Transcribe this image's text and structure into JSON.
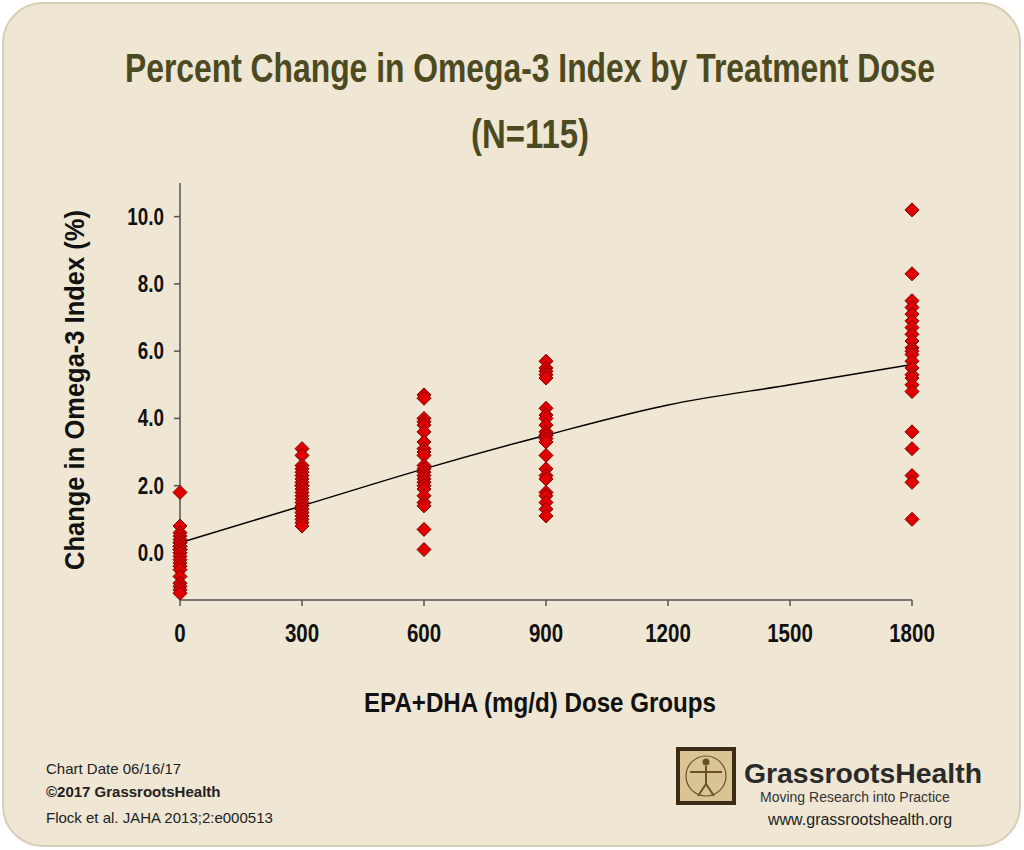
{
  "chart_data": {
    "type": "scatter",
    "title": "Percent Change in Omega-3 Index by Treatment Dose",
    "subtitle": "(N=115)",
    "xlabel": "EPA+DHA (mg/d) Dose Groups",
    "ylabel": "Change in Omega-3 Index (%)",
    "xlim": [
      0,
      1800
    ],
    "xticks": [
      0,
      300,
      600,
      900,
      1200,
      1500,
      1800
    ],
    "ylim": [
      -1.4,
      11
    ],
    "yticks": [
      {
        "value": 0,
        "label": "0.0"
      },
      {
        "value": 2,
        "label": "2.0"
      },
      {
        "value": 4,
        "label": "4.0"
      },
      {
        "value": 6,
        "label": "6.0"
      },
      {
        "value": 8,
        "label": "8.0"
      },
      {
        "value": 10,
        "label": "10.0"
      }
    ],
    "grid": false,
    "series": [
      {
        "type": "scatter",
        "color": "#e00000",
        "marker": "diamond",
        "x": [
          0,
          0,
          0,
          0,
          0,
          0,
          0,
          0,
          0,
          0,
          0,
          0,
          0,
          0,
          0,
          0,
          0,
          0,
          0,
          0,
          0,
          0,
          0,
          300,
          300,
          300,
          300,
          300,
          300,
          300,
          300,
          300,
          300,
          300,
          300,
          300,
          300,
          300,
          300,
          300,
          300,
          300,
          300,
          300,
          300,
          300,
          600,
          600,
          600,
          600,
          600,
          600,
          600,
          600,
          600,
          600,
          600,
          600,
          600,
          600,
          600,
          600,
          600,
          600,
          600,
          600,
          600,
          600,
          600,
          900,
          900,
          900,
          900,
          900,
          900,
          900,
          900,
          900,
          900,
          900,
          900,
          900,
          900,
          900,
          900,
          900,
          900,
          900,
          900,
          900,
          900,
          900,
          1800,
          1800,
          1800,
          1800,
          1800,
          1800,
          1800,
          1800,
          1800,
          1800,
          1800,
          1800,
          1800,
          1800,
          1800,
          1800,
          1800,
          1800,
          1800,
          1800,
          1800,
          1800,
          1800
        ],
        "values": [
          1.8,
          0.8,
          0.6,
          0.5,
          0.4,
          0.3,
          0.3,
          0.2,
          0.2,
          0.1,
          0.1,
          0.0,
          0.0,
          -0.1,
          -0.2,
          -0.3,
          -0.4,
          -0.5,
          -0.7,
          -0.9,
          -1.0,
          -1.1,
          -1.2,
          3.1,
          2.9,
          2.6,
          2.5,
          2.4,
          2.3,
          2.2,
          2.1,
          2.0,
          2.0,
          1.9,
          1.8,
          1.7,
          1.6,
          1.5,
          1.4,
          1.3,
          1.3,
          1.2,
          1.1,
          1.0,
          0.9,
          0.8,
          4.7,
          4.6,
          4.0,
          3.9,
          3.8,
          3.6,
          3.3,
          3.1,
          3.0,
          2.9,
          2.6,
          2.5,
          2.4,
          2.3,
          2.2,
          2.1,
          2.0,
          1.9,
          1.7,
          1.5,
          1.4,
          0.7,
          0.1,
          5.7,
          5.5,
          5.4,
          5.3,
          5.2,
          4.3,
          4.1,
          4.0,
          3.8,
          3.6,
          3.5,
          3.5,
          3.4,
          3.3,
          2.9,
          2.5,
          2.3,
          2.2,
          1.8,
          1.7,
          1.5,
          1.3,
          1.1,
          10.2,
          8.3,
          7.5,
          7.3,
          7.1,
          6.9,
          6.7,
          6.5,
          6.3,
          6.1,
          6.0,
          5.9,
          5.7,
          5.5,
          5.3,
          5.2,
          5.0,
          4.8,
          3.6,
          3.1,
          2.3,
          2.1,
          1.0
        ]
      },
      {
        "type": "line",
        "color": "#000000",
        "line_style": "solid",
        "x": [
          0,
          300,
          600,
          900,
          1200,
          1500,
          1800
        ],
        "values": [
          0.3,
          1.4,
          2.5,
          3.5,
          4.4,
          5.0,
          5.6
        ]
      }
    ],
    "annotations": [
      "Chart Date 06/16/17",
      "©2017 GrassrootsHealth",
      "Flock et al. JAHA 2013;2:e000513",
      "GrassrootsHealth",
      "Moving Research into Practice",
      "www.grassrootshealth.org"
    ]
  }
}
